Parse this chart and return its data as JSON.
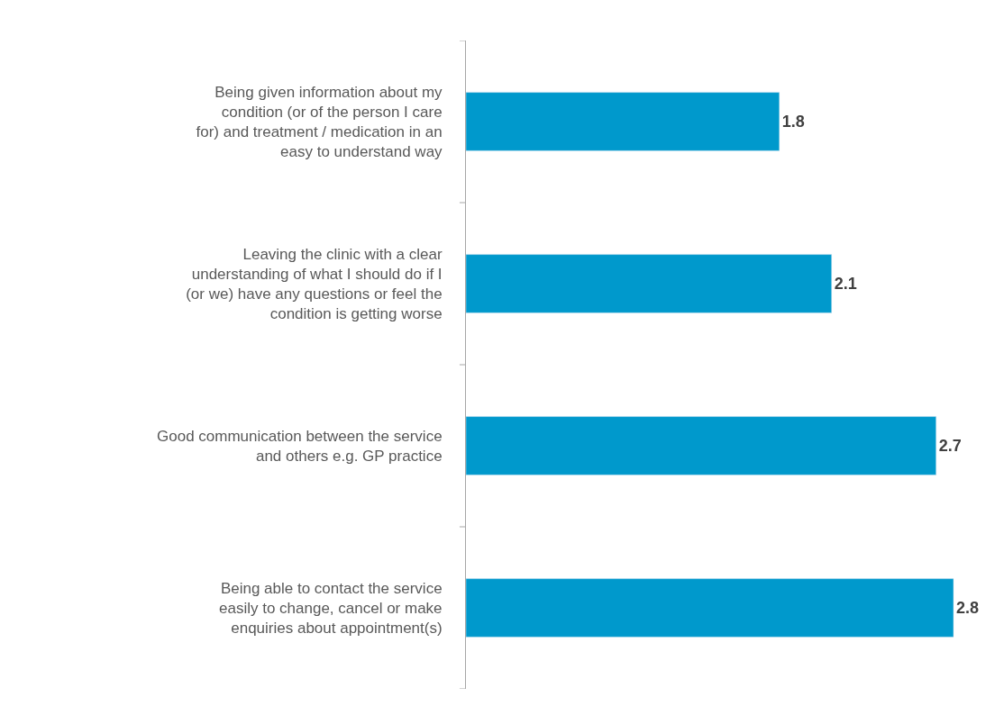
{
  "chart_data": {
    "type": "bar",
    "orientation": "horizontal",
    "categories": [
      "Being given information about my condition (or of the person I care for) and treatment / medication in an easy to understand way",
      "Leaving the clinic with a clear understanding of what I should do if I (or we) have any questions or feel the condition is getting worse",
      "Good communication between the service and others e.g. GP practice",
      "Being able to contact the service easily to change, cancel or make enquiries about appointment(s)"
    ],
    "values": [
      1.8,
      2.1,
      2.7,
      2.8
    ],
    "color": "#0099cc",
    "data_labels": true,
    "legend": false,
    "tick_labels": "y"
  }
}
